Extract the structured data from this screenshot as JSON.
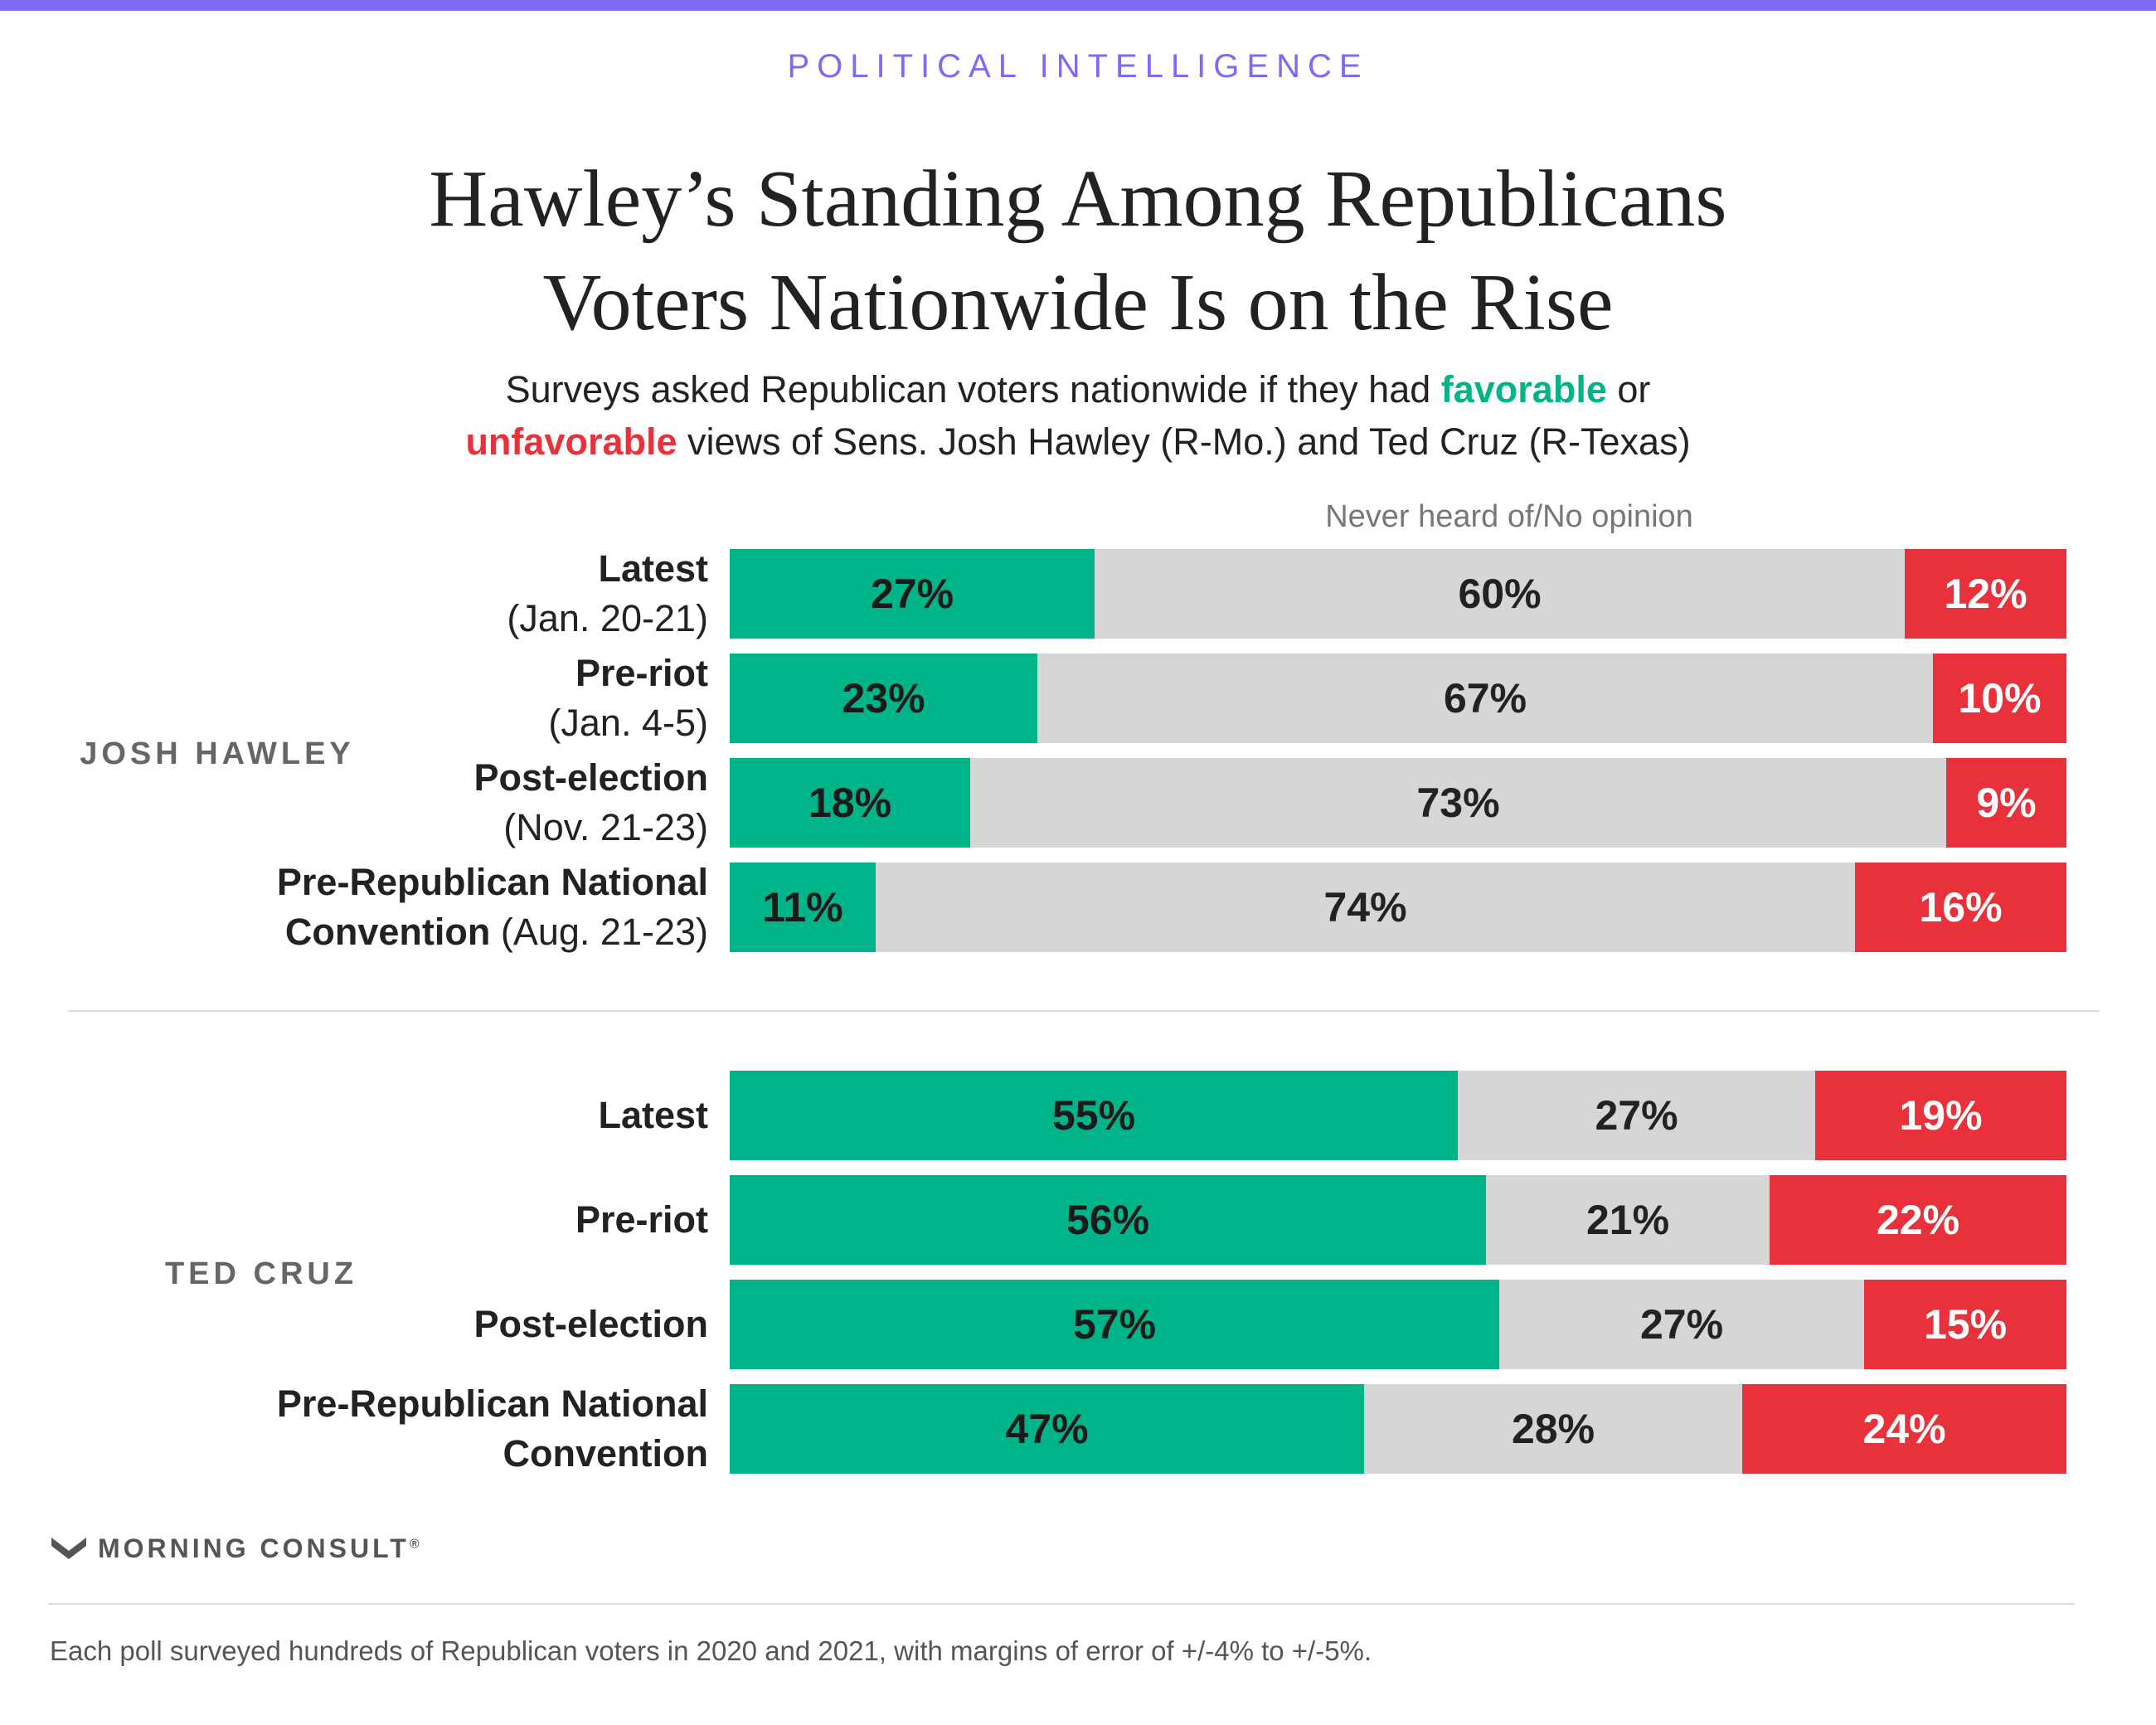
{
  "header": {
    "kicker": "POLITICAL INTELLIGENCE",
    "title_line1": "Hawley’s Standing Among Republicans",
    "title_line2": "Voters Nationwide Is on the Rise",
    "subtitle_part1": "Surveys asked Republican voters nationwide if they had ",
    "subtitle_favorable": "favorable",
    "subtitle_part2": " or",
    "subtitle_unfavorable": "unfavorable",
    "subtitle_part3": " views of Sens. Josh Hawley (R-Mo.) and Ted Cruz (R-Texas)"
  },
  "colors": {
    "accent": "#7b6cf6",
    "favorable": "#00b48a",
    "no_opinion": "#d6d6d6",
    "unfavorable": "#e8313b"
  },
  "chart_data": {
    "type": "bar",
    "orientation": "horizontal-stacked",
    "segment_labels": [
      "",
      "Never heard of/No opinion",
      ""
    ],
    "groups": [
      {
        "name": "JOSH HAWLEY",
        "rows": [
          {
            "label": "Latest",
            "date": "(Jan. 20-21)",
            "favorable": 27,
            "no_opinion": 60,
            "unfavorable": 12
          },
          {
            "label": "Pre-riot",
            "date": "(Jan. 4-5)",
            "favorable": 23,
            "no_opinion": 67,
            "unfavorable": 10
          },
          {
            "label": "Post-election",
            "date": "(Nov. 21-23)",
            "favorable": 18,
            "no_opinion": 73,
            "unfavorable": 9
          },
          {
            "label": "Pre-Republican National",
            "label2": "Convention",
            "date": "(Aug. 21-23)",
            "favorable": 11,
            "no_opinion": 74,
            "unfavorable": 16
          }
        ]
      },
      {
        "name": "TED CRUZ",
        "rows": [
          {
            "label": "Latest",
            "favorable": 55,
            "no_opinion": 27,
            "unfavorable": 19
          },
          {
            "label": "Pre-riot",
            "favorable": 56,
            "no_opinion": 21,
            "unfavorable": 22
          },
          {
            "label": "Post-election",
            "favorable": 57,
            "no_opinion": 27,
            "unfavorable": 15
          },
          {
            "label": "Pre-Republican National",
            "label2": "Convention",
            "favorable": 47,
            "no_opinion": 28,
            "unfavorable": 24
          }
        ]
      }
    ]
  },
  "footer": {
    "brand": "MORNING CONSULT",
    "brand_mark": "®",
    "logo_icon": "morning-consult-logo-icon",
    "note": "Each poll surveyed hundreds of Republican voters in 2020 and 2021, with margins of error of +/-4% to +/-5%."
  }
}
